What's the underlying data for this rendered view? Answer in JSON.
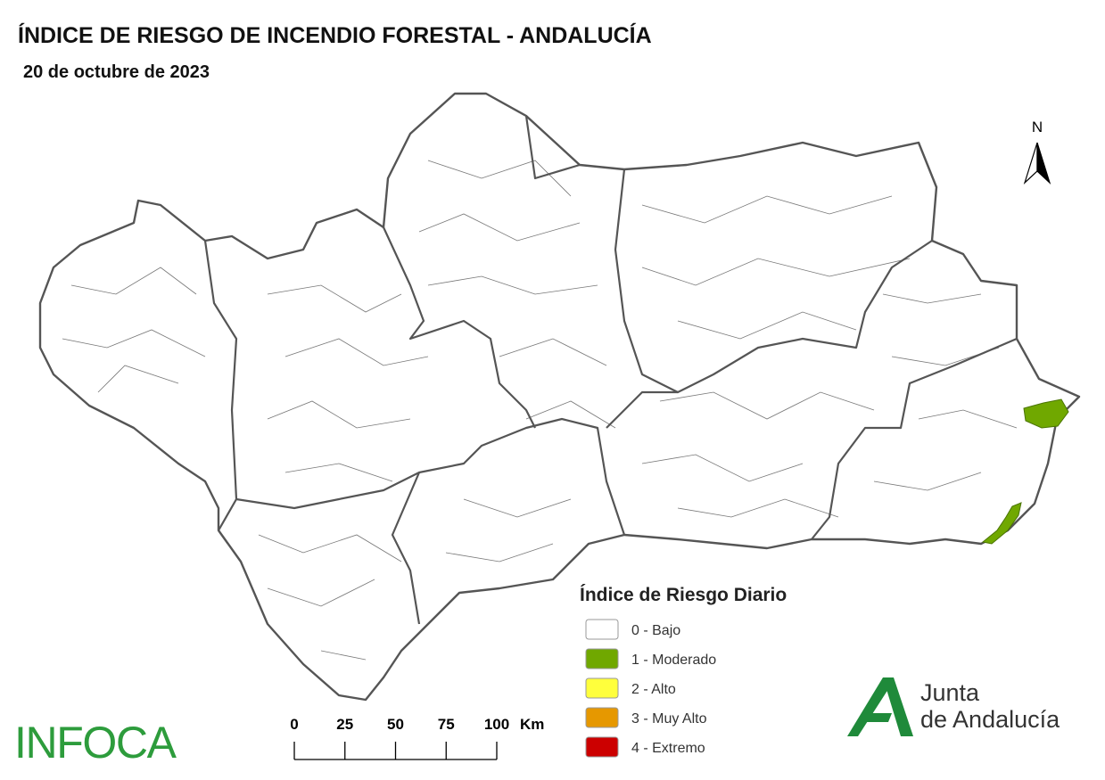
{
  "header": {
    "title": "ÍNDICE DE RIESGO DE INCENDIO FORESTAL - ANDALUCÍA",
    "date": "20 de octubre de 2023"
  },
  "north_arrow": {
    "label": "N"
  },
  "legend": {
    "title": "Índice de Riesgo Diario",
    "items": [
      {
        "label": "0 - Bajo",
        "color": "#ffffff"
      },
      {
        "label": "1 - Moderado",
        "color": "#70a800"
      },
      {
        "label": "2 - Alto",
        "color": "#ffff3c"
      },
      {
        "label": "3 - Muy Alto",
        "color": "#e69800"
      },
      {
        "label": "4 - Extremo",
        "color": "#cc0000"
      }
    ]
  },
  "scale_bar": {
    "ticks": [
      0,
      25,
      50,
      75,
      100
    ],
    "unit": "Km"
  },
  "logos": {
    "infoca": "INFOCA",
    "junta_line1": "Junta",
    "junta_line2": "de Andalucía"
  }
}
